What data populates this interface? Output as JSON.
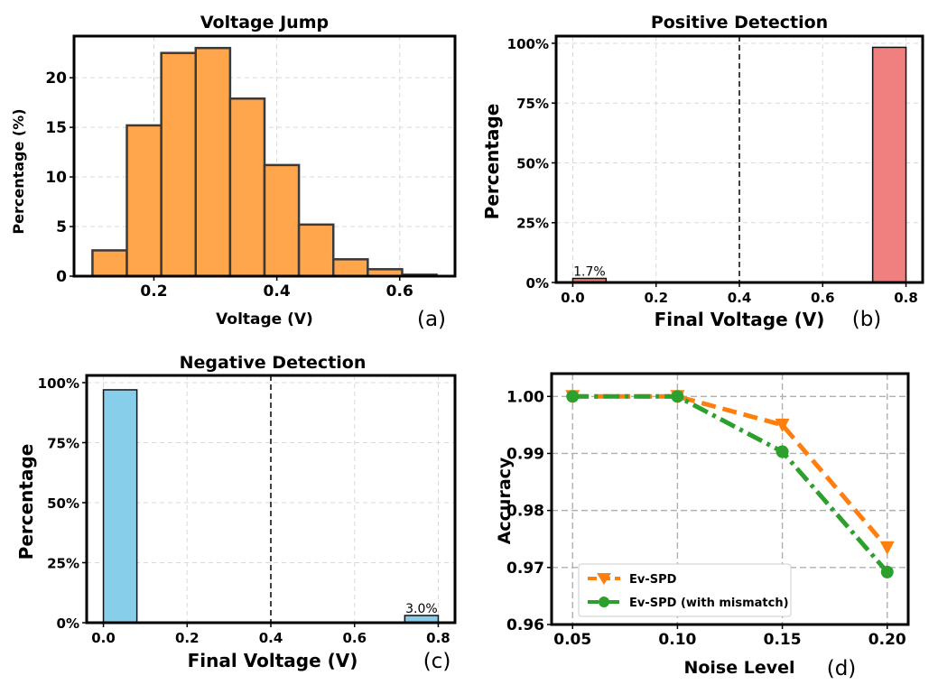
{
  "chart_data": [
    {
      "id": "a",
      "type": "bar",
      "panel_label": "(a)",
      "title": "Voltage Jump",
      "xlabel": "Voltage (V)",
      "ylabel": "Percentage (%)",
      "xlim": [
        0.07,
        0.69
      ],
      "ylim": [
        0,
        24.2
      ],
      "xticks": [
        0.2,
        0.4,
        0.6
      ],
      "xtick_labels": [
        "0.2",
        "0.4",
        "0.6"
      ],
      "yticks": [
        0,
        5,
        10,
        15,
        20
      ],
      "ytick_labels": [
        "0",
        "5",
        "10",
        "15",
        "20"
      ],
      "bin_edges": [
        0.1,
        0.156,
        0.212,
        0.268,
        0.324,
        0.38,
        0.436,
        0.492,
        0.548,
        0.604,
        0.66
      ],
      "values": [
        2.6,
        15.2,
        22.5,
        23.0,
        17.9,
        11.2,
        5.2,
        1.7,
        0.7,
        0.15
      ],
      "color": "#FFA64D",
      "grid": true
    },
    {
      "id": "b",
      "type": "bar",
      "panel_label": "(b)",
      "title": "Positive Detection",
      "xlabel": "Final Voltage (V)",
      "ylabel": "Percentage",
      "xlim": [
        -0.04,
        0.84
      ],
      "ylim": [
        0,
        1.03
      ],
      "xticks": [
        0.0,
        0.2,
        0.4,
        0.6,
        0.8
      ],
      "xtick_labels": [
        "0.0",
        "0.2",
        "0.4",
        "0.6",
        "0.8"
      ],
      "yticks": [
        0,
        0.25,
        0.5,
        0.75,
        1.0
      ],
      "ytick_labels": [
        "0%",
        "25%",
        "50%",
        "75%",
        "100%"
      ],
      "bars": [
        {
          "x0": 0.0,
          "x1": 0.08,
          "value": 0.017,
          "label": "1.7%"
        },
        {
          "x0": 0.72,
          "x1": 0.8,
          "value": 0.983
        }
      ],
      "threshold": 0.4,
      "color": "#F08080",
      "grid": true
    },
    {
      "id": "c",
      "type": "bar",
      "panel_label": "(c)",
      "title": "Negative Detection",
      "xlabel": "Final Voltage (V)",
      "ylabel": "Percentage",
      "xlim": [
        -0.04,
        0.84
      ],
      "ylim": [
        0,
        1.03
      ],
      "xticks": [
        0.0,
        0.2,
        0.4,
        0.6,
        0.8
      ],
      "xtick_labels": [
        "0.0",
        "0.2",
        "0.4",
        "0.6",
        "0.8"
      ],
      "yticks": [
        0,
        0.25,
        0.5,
        0.75,
        1.0
      ],
      "ytick_labels": [
        "0%",
        "25%",
        "50%",
        "75%",
        "100%"
      ],
      "bars": [
        {
          "x0": 0.0,
          "x1": 0.08,
          "value": 0.97
        },
        {
          "x0": 0.72,
          "x1": 0.8,
          "value": 0.03,
          "label": "3.0%"
        }
      ],
      "threshold": 0.4,
      "color": "#87CEEB",
      "grid": true
    },
    {
      "id": "d",
      "type": "line",
      "panel_label": "(d)",
      "xlabel": "Noise Level",
      "ylabel": "Accuracy",
      "xlim": [
        0.04,
        0.21
      ],
      "ylim": [
        0.96,
        1.004
      ],
      "xticks": [
        0.05,
        0.1,
        0.15,
        0.2
      ],
      "xtick_labels": [
        "0.05",
        "0.10",
        "0.15",
        "0.20"
      ],
      "yticks": [
        0.96,
        0.97,
        0.98,
        0.99,
        1.0
      ],
      "ytick_labels": [
        "0.96",
        "0.97",
        "0.98",
        "0.99",
        "1.00"
      ],
      "x": [
        0.05,
        0.1,
        0.15,
        0.2
      ],
      "series": [
        {
          "name": "Ev-SPD",
          "values": [
            1.0,
            1.0,
            0.995,
            0.9735
          ],
          "color": "#FF7F0E",
          "dash": "dashed",
          "marker": "triangle-down"
        },
        {
          "name": "Ev-SPD (with mismatch)",
          "values": [
            1.0,
            1.0,
            0.9903,
            0.9692
          ],
          "color": "#2CA02C",
          "dash": "dashdot",
          "marker": "circle"
        }
      ],
      "legend": "lower-left",
      "grid": true
    }
  ]
}
